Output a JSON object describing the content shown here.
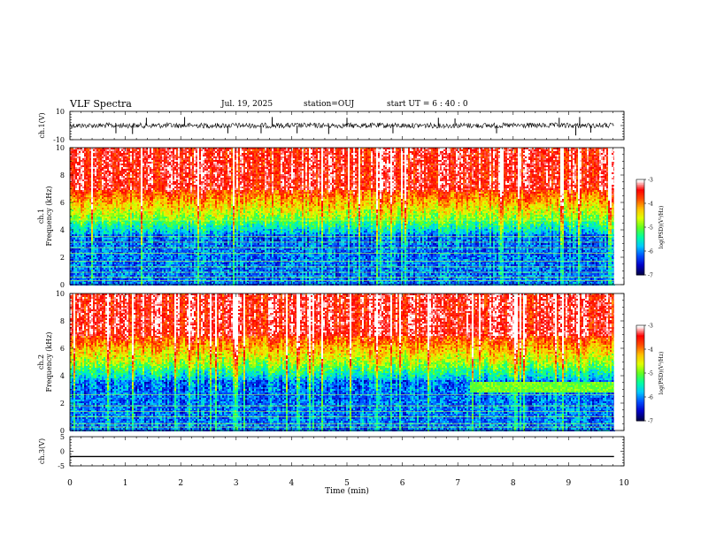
{
  "header": {
    "title": "VLF Spectra",
    "date": "Jul. 19, 2025",
    "station": "station=OUJ",
    "start": "start UT =  6 : 40 : 0"
  },
  "chart_data": [
    {
      "type": "line",
      "panel": "ch1-waveform",
      "ylabel": "ch.1(V)",
      "ylim": [
        -10,
        10
      ],
      "yticks": [
        10,
        -10
      ],
      "xlim": [
        0,
        10
      ],
      "baseline": 0,
      "spikes": [
        {
          "x": 0.83,
          "y": -5.5
        },
        {
          "x": 1.13,
          "y": -6
        },
        {
          "x": 1.38,
          "y": 5.5
        },
        {
          "x": 2.07,
          "y": 6
        },
        {
          "x": 2.85,
          "y": -5.5
        },
        {
          "x": 3.45,
          "y": -5.5
        },
        {
          "x": 3.65,
          "y": 6
        },
        {
          "x": 4.1,
          "y": -5.5
        },
        {
          "x": 4.67,
          "y": -6
        },
        {
          "x": 5.0,
          "y": 5.5
        },
        {
          "x": 5.83,
          "y": -5.5
        },
        {
          "x": 6.65,
          "y": 5.5
        },
        {
          "x": 6.95,
          "y": 5
        },
        {
          "x": 7.7,
          "y": -5.5
        },
        {
          "x": 8.83,
          "y": 5.5
        },
        {
          "x": 9.13,
          "y": -7
        },
        {
          "x": 9.2,
          "y": 6
        },
        {
          "x": 9.4,
          "y": -5
        }
      ]
    },
    {
      "type": "heatmap",
      "panel": "ch1-spectrogram",
      "ylabel": "ch.1 Frequency (kHz)",
      "ylim": [
        0,
        10
      ],
      "yticks": [
        0,
        2,
        4,
        6,
        8,
        10
      ],
      "xlim": [
        0,
        10
      ],
      "data_end_min": 9.82,
      "colorbar": {
        "label": "log(PSD)(V²/Hz)",
        "ticks": [
          -3,
          -4,
          -5,
          -6,
          -7
        ],
        "range": [
          -7,
          -3
        ]
      },
      "tone_lines_khz": [
        0.3,
        0.55,
        0.9,
        1.3,
        1.7,
        2.3,
        2.7,
        3.1,
        3.5,
        4.7
      ]
    },
    {
      "type": "heatmap",
      "panel": "ch2-spectrogram",
      "ylabel": "ch.2 Frequency (kHz)",
      "ylim": [
        0,
        10
      ],
      "yticks": [
        0,
        2,
        4,
        6,
        8,
        10
      ],
      "xlim": [
        0,
        10
      ],
      "data_end_min": 9.82,
      "band_after_min": {
        "start": 7.2,
        "low_khz": 2.9,
        "high_khz": 3.6
      },
      "colorbar": {
        "label": "log(PSD)(V²/Hz)",
        "ticks": [
          -3,
          -4,
          -5,
          -6,
          -7
        ],
        "range": [
          -7,
          -3
        ]
      },
      "tone_lines_khz": [
        0.25,
        0.5,
        1.0,
        1.4,
        1.8,
        2.6
      ]
    },
    {
      "type": "line",
      "panel": "ch3-waveform",
      "ylabel": "ch.3(V)",
      "ylim": [
        -5,
        5
      ],
      "yticks": [
        5,
        0,
        -5
      ],
      "xlim": [
        0,
        10
      ],
      "x": [
        0,
        9.82
      ],
      "y": [
        -1.8,
        -1.8
      ]
    }
  ],
  "xaxis": {
    "label": "Time (min)",
    "ticks": [
      "0",
      "1",
      "2",
      "3",
      "4",
      "5",
      "6",
      "7",
      "8",
      "9",
      "10"
    ]
  },
  "colors": {
    "palette": [
      "#00004a",
      "#0000c8",
      "#0050ff",
      "#00c8ff",
      "#00ffa0",
      "#60ff20",
      "#e0ff00",
      "#ffc000",
      "#ff5000",
      "#ff0000",
      "#ffffff"
    ]
  }
}
